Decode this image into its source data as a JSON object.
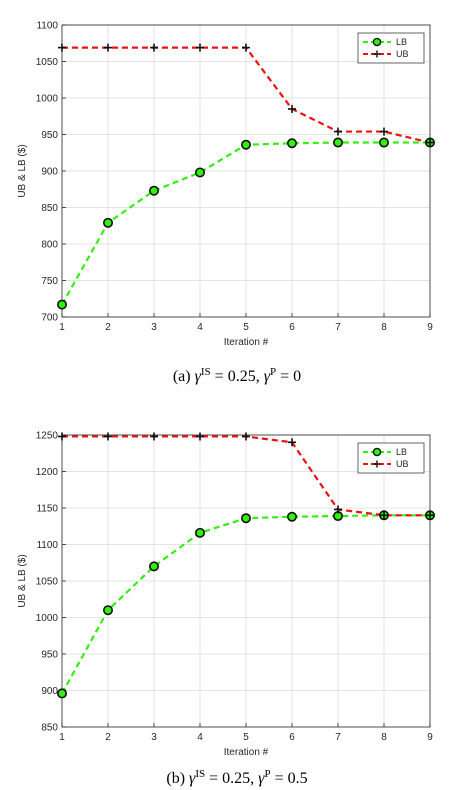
{
  "chart_data": [
    {
      "type": "line",
      "caption": {
        "prefix": "(a) ",
        "gamma": "γ",
        "sup1": "IS",
        "mid": " = 0.25, ",
        "sup2": "P",
        "suffix": " = 0"
      },
      "xlabel": "Iteration #",
      "ylabel": "UB & LB ($)",
      "x": [
        1,
        2,
        3,
        4,
        5,
        6,
        7,
        8,
        9
      ],
      "xlim": [
        1,
        9
      ],
      "ylim": [
        700,
        1100
      ],
      "yticks": [
        700,
        750,
        800,
        850,
        900,
        950,
        1000,
        1050,
        1100
      ],
      "grid": true,
      "legend_position": "top-right",
      "series": [
        {
          "name": "LB",
          "color": "#33ee11",
          "marker": "circle",
          "values": [
            717,
            829,
            873,
            898,
            936,
            938,
            939,
            939,
            939
          ]
        },
        {
          "name": "UB",
          "color": "#ee1111",
          "marker": "plus",
          "values": [
            1069,
            1069,
            1069,
            1069,
            1069,
            985,
            954,
            954,
            939
          ]
        }
      ]
    },
    {
      "type": "line",
      "caption": {
        "prefix": "(b) ",
        "gamma": "γ",
        "sup1": "IS",
        "mid": " = 0.25, ",
        "sup2": "P",
        "suffix": " = 0.5"
      },
      "xlabel": "Iteration #",
      "ylabel": "UB & LB ($)",
      "x": [
        1,
        2,
        3,
        4,
        5,
        6,
        7,
        8,
        9
      ],
      "xlim": [
        1,
        9
      ],
      "ylim": [
        850,
        1250
      ],
      "yticks": [
        850,
        900,
        950,
        1000,
        1050,
        1100,
        1150,
        1200,
        1250
      ],
      "grid": true,
      "legend_position": "top-right",
      "series": [
        {
          "name": "LB",
          "color": "#33ee11",
          "marker": "circle",
          "values": [
            896,
            1010,
            1070,
            1116,
            1136,
            1138,
            1139,
            1140,
            1140
          ]
        },
        {
          "name": "UB",
          "color": "#ee1111",
          "marker": "plus",
          "values": [
            1248,
            1248,
            1248,
            1248,
            1248,
            1240,
            1148,
            1140,
            1140
          ]
        }
      ]
    }
  ]
}
